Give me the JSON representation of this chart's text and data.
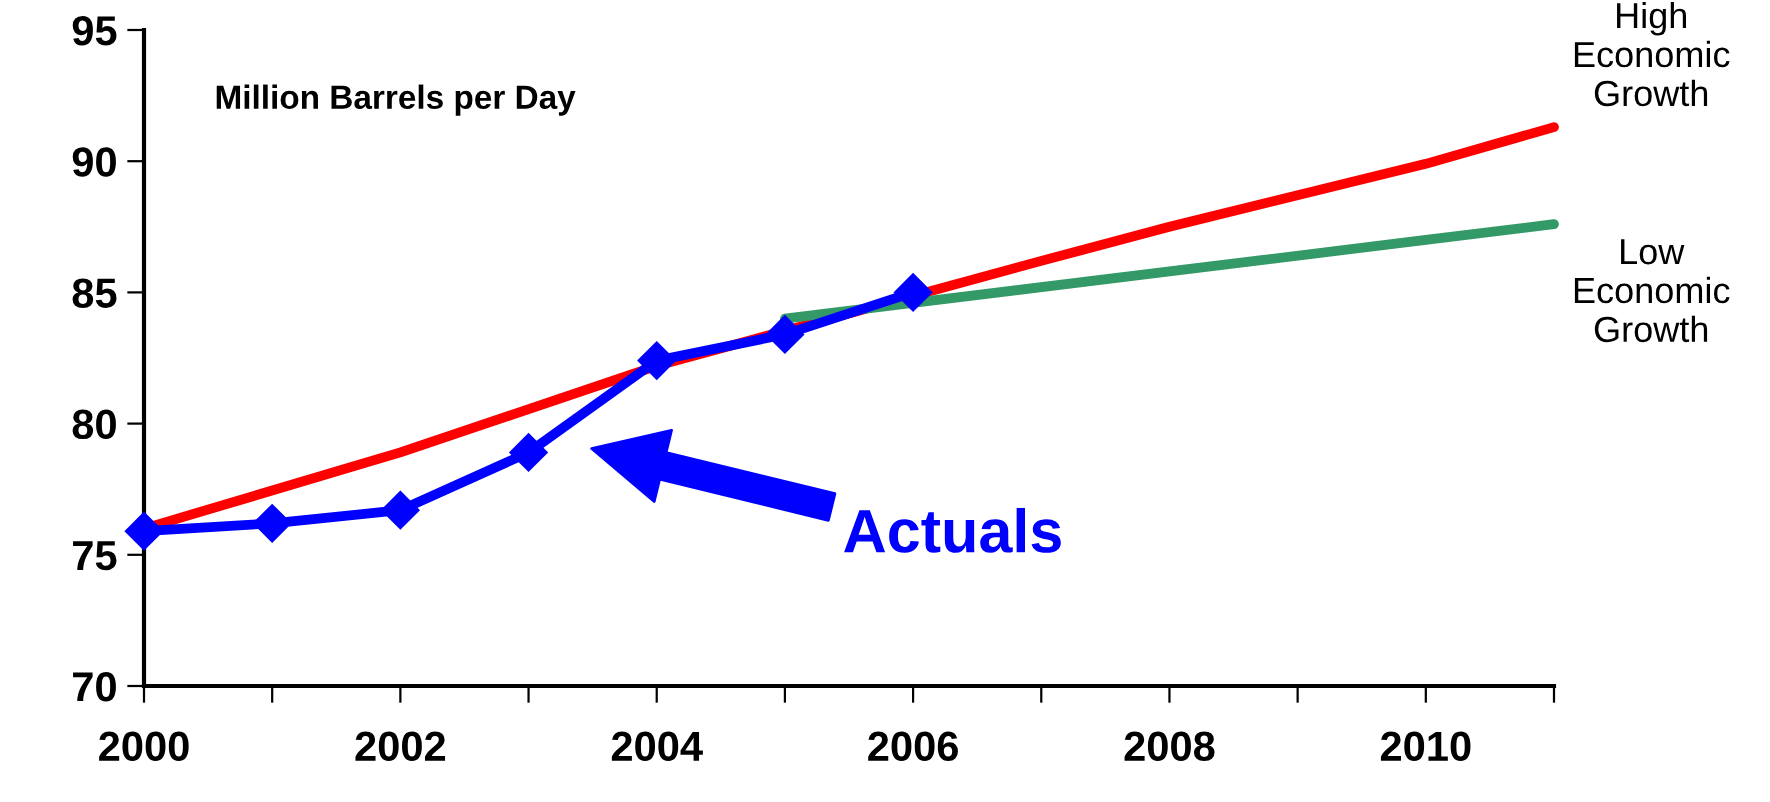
{
  "chart_data": {
    "type": "line",
    "ylabel": "Million Barrels per Day",
    "series": [
      {
        "name": "High Economic Growth",
        "color": "#ff0000",
        "x": [
          2000,
          2002,
          2004,
          2007,
          2008,
          2010,
          2011
        ],
        "values": [
          76,
          78.9,
          82.2,
          86.2,
          87.5,
          89.9,
          91.3
        ],
        "marker": "none"
      },
      {
        "name": "Low Economic Growth",
        "color": "#339966",
        "x": [
          2005,
          2006,
          2008,
          2010,
          2011
        ],
        "values": [
          84,
          84.6,
          85.8,
          87,
          87.6
        ],
        "marker": "none"
      },
      {
        "name": "Actuals",
        "color": "#0000ff",
        "x": [
          2000,
          2001,
          2002,
          2003,
          2004,
          2005,
          2006
        ],
        "values": [
          75.9,
          76.2,
          76.7,
          78.9,
          82.4,
          83.4,
          85
        ],
        "marker": "diamond"
      }
    ],
    "xlim": [
      2000,
      2011
    ],
    "xticks": [
      2000,
      {
        "value": 2001,
        "label": null
      },
      2002,
      {
        "value": 2003,
        "label": null
      },
      2004,
      {
        "value": 2005,
        "label": null
      },
      2006,
      {
        "value": 2007,
        "label": null
      },
      2008,
      {
        "value": 2009,
        "label": null
      },
      2010,
      {
        "value": 2011,
        "label": null
      }
    ],
    "ylim": [
      70,
      95
    ],
    "yticks": [
      70,
      75,
      80,
      85,
      90,
      95
    ],
    "grid": false,
    "legend": false,
    "line_style": "solid"
  }
}
